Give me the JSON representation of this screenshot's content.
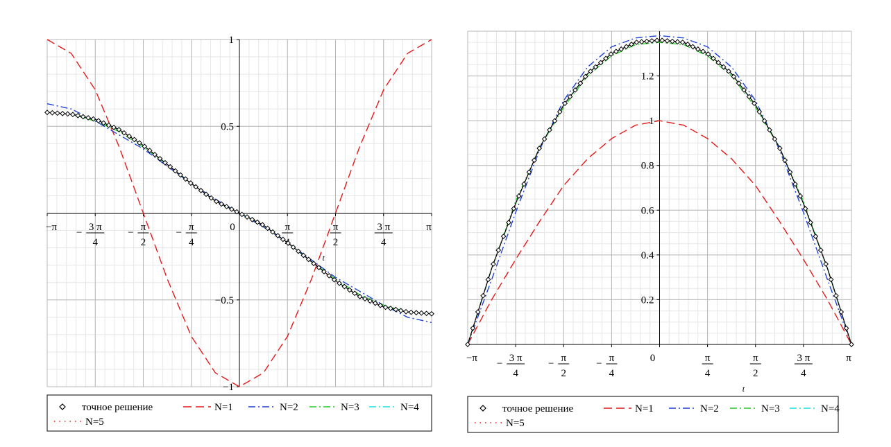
{
  "legend_labels": {
    "exact": "точное решение",
    "n1": "N=1",
    "n2": "N=2",
    "n3": "N=3",
    "n4": "N=4",
    "n5": "N=5"
  },
  "series_colors": {
    "exact": "#000000",
    "n1": "#e31a1c",
    "n2": "#1f3fd8",
    "n3": "#22cc22",
    "n4": "#20e0e0",
    "n5": "#e31a1c"
  },
  "chart_data": [
    {
      "type": "line",
      "title": "",
      "xlabel": "t",
      "ylabel": "",
      "xlim": [
        -3.14159,
        3.14159
      ],
      "ylim": [
        -1,
        1
      ],
      "grid": true,
      "legend_position": "bottom",
      "x_ticks": [
        {
          "label": "−π",
          "value": -3.14159
        },
        {
          "label": "−3π/4",
          "value": -2.35619
        },
        {
          "label": "−π/2",
          "value": -1.5708
        },
        {
          "label": "−π/4",
          "value": -0.7854
        },
        {
          "label": "0",
          "value": 0
        },
        {
          "label": "π/4",
          "value": 0.7854
        },
        {
          "label": "π/2",
          "value": 1.5708
        },
        {
          "label": "3π/4",
          "value": 2.35619
        },
        {
          "label": "π",
          "value": 3.14159
        }
      ],
      "y_ticks": [
        {
          "label": "1",
          "value": 1
        },
        {
          "label": "0.5",
          "value": 0.5
        },
        {
          "label": "−0.5",
          "value": -0.5
        },
        {
          "label": "−1",
          "value": -1
        }
      ],
      "x": [
        -3.1416,
        -2.7489,
        -2.3562,
        -1.9635,
        -1.5708,
        -1.1781,
        -0.7854,
        -0.3927,
        0,
        0.3927,
        0.7854,
        1.1781,
        1.5708,
        1.9635,
        2.3562,
        2.7489,
        3.1416
      ],
      "series": [
        {
          "key": "exact",
          "marker": "diamond",
          "values": [
            0.58,
            0.57,
            0.54,
            0.48,
            0.39,
            0.28,
            0.17,
            0.07,
            0,
            -0.07,
            -0.17,
            -0.28,
            -0.39,
            -0.48,
            -0.54,
            -0.57,
            -0.58
          ]
        },
        {
          "key": "n1",
          "dash": "long",
          "values": [
            1.0,
            0.92,
            0.71,
            0.38,
            0.0,
            -0.38,
            -0.71,
            -0.92,
            -1.0,
            -0.92,
            -0.71,
            -0.38,
            0.0,
            0.38,
            0.71,
            0.92,
            1.0
          ]
        },
        {
          "key": "n2",
          "dash": "dashdot",
          "values": [
            0.63,
            0.6,
            0.53,
            0.45,
            0.37,
            0.27,
            0.17,
            0.08,
            0,
            -0.08,
            -0.17,
            -0.27,
            -0.37,
            -0.45,
            -0.53,
            -0.6,
            -0.63
          ]
        },
        {
          "key": "n3",
          "dash": "dashdot",
          "values": [
            0.58,
            0.57,
            0.53,
            0.47,
            0.38,
            0.28,
            0.17,
            0.07,
            0,
            -0.07,
            -0.17,
            -0.28,
            -0.38,
            -0.47,
            -0.53,
            -0.57,
            -0.58
          ]
        },
        {
          "key": "n4",
          "dash": "dashdot",
          "values": [
            0.58,
            0.57,
            0.54,
            0.48,
            0.39,
            0.28,
            0.17,
            0.07,
            0,
            -0.07,
            -0.17,
            -0.28,
            -0.39,
            -0.48,
            -0.54,
            -0.57,
            -0.58
          ]
        },
        {
          "key": "n5",
          "dash": "dot",
          "values": [
            0.58,
            0.57,
            0.54,
            0.48,
            0.39,
            0.28,
            0.17,
            0.07,
            0,
            -0.07,
            -0.17,
            -0.28,
            -0.39,
            -0.48,
            -0.54,
            -0.57,
            -0.58
          ]
        }
      ]
    },
    {
      "type": "line",
      "title": "",
      "xlabel": "t",
      "ylabel": "",
      "xlim": [
        -3.14159,
        3.14159
      ],
      "ylim": [
        0,
        1.4
      ],
      "grid": true,
      "legend_position": "bottom",
      "x_ticks": [
        {
          "label": "−π",
          "value": -3.14159
        },
        {
          "label": "−3π/4",
          "value": -2.35619
        },
        {
          "label": "−π/2",
          "value": -1.5708
        },
        {
          "label": "−π/4",
          "value": -0.7854
        },
        {
          "label": "0",
          "value": 0
        },
        {
          "label": "π/4",
          "value": 0.7854
        },
        {
          "label": "π/2",
          "value": 1.5708
        },
        {
          "label": "3π/4",
          "value": 2.35619
        },
        {
          "label": "π",
          "value": 3.14159
        }
      ],
      "y_ticks": [
        {
          "label": "1.2",
          "value": 1.2
        },
        {
          "label": "1",
          "value": 1.0
        },
        {
          "label": "0.8",
          "value": 0.8
        },
        {
          "label": "0.6",
          "value": 0.6
        },
        {
          "label": "0.4",
          "value": 0.4
        },
        {
          "label": "0.2",
          "value": 0.2
        }
      ],
      "x": [
        -3.1416,
        -2.7489,
        -2.3562,
        -1.9635,
        -1.5708,
        -1.1781,
        -0.7854,
        -0.3927,
        0,
        0.3927,
        0.7854,
        1.1781,
        1.5708,
        1.9635,
        2.3562,
        2.7489,
        3.1416
      ],
      "series": [
        {
          "key": "exact",
          "marker": "diamond",
          "values": [
            0.0,
            0.34,
            0.63,
            0.88,
            1.07,
            1.21,
            1.3,
            1.35,
            1.36,
            1.35,
            1.3,
            1.21,
            1.07,
            0.88,
            0.63,
            0.34,
            0.0
          ]
        },
        {
          "key": "n1",
          "dash": "long",
          "values": [
            0.0,
            0.2,
            0.38,
            0.55,
            0.71,
            0.83,
            0.92,
            0.98,
            1.0,
            0.98,
            0.92,
            0.83,
            0.71,
            0.55,
            0.38,
            0.2,
            0.0
          ]
        },
        {
          "key": "n2",
          "dash": "dashdot",
          "values": [
            0.0,
            0.29,
            0.59,
            0.87,
            1.09,
            1.24,
            1.33,
            1.37,
            1.38,
            1.37,
            1.33,
            1.24,
            1.09,
            0.87,
            0.59,
            0.29,
            0.0
          ]
        },
        {
          "key": "n3",
          "dash": "dashdot",
          "values": [
            0.0,
            0.34,
            0.64,
            0.88,
            1.06,
            1.2,
            1.29,
            1.34,
            1.35,
            1.34,
            1.29,
            1.2,
            1.06,
            0.88,
            0.64,
            0.34,
            0.0
          ]
        },
        {
          "key": "n4",
          "dash": "dashdot",
          "values": [
            0.0,
            0.34,
            0.63,
            0.88,
            1.07,
            1.21,
            1.3,
            1.35,
            1.36,
            1.35,
            1.3,
            1.21,
            1.07,
            0.88,
            0.63,
            0.34,
            0.0
          ]
        },
        {
          "key": "n5",
          "dash": "dot",
          "values": [
            0.0,
            0.34,
            0.63,
            0.88,
            1.07,
            1.21,
            1.3,
            1.35,
            1.36,
            1.35,
            1.3,
            1.21,
            1.07,
            0.88,
            0.63,
            0.34,
            0.0
          ]
        }
      ]
    }
  ]
}
